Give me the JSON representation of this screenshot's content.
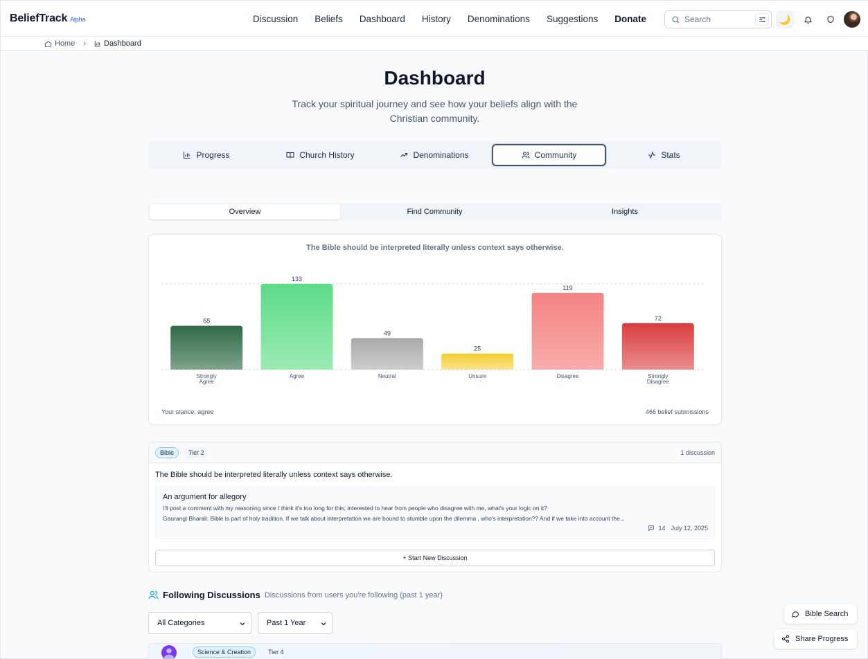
{
  "app": {
    "brand": "BeliefTrack",
    "badge": "Alpha"
  },
  "nav": {
    "items": [
      "Discussion",
      "Beliefs",
      "Dashboard",
      "History",
      "Denominations",
      "Suggestions",
      "Donate"
    ]
  },
  "search": {
    "placeholder": "Search"
  },
  "breadcrumb": {
    "home": "Home",
    "current": "Dashboard"
  },
  "page": {
    "title": "Dashboard",
    "subtitle": "Track your spiritual journey and see how your beliefs align with the Christian community."
  },
  "tabs": [
    {
      "label": "Progress",
      "icon": "bar-chart-icon"
    },
    {
      "label": "Church History",
      "icon": "book-icon"
    },
    {
      "label": "Denominations",
      "icon": "trending-up-icon"
    },
    {
      "label": "Community",
      "icon": "users-icon",
      "active": true
    },
    {
      "label": "Stats",
      "icon": "activity-icon"
    }
  ],
  "subtabs": [
    {
      "label": "Overview",
      "active": true
    },
    {
      "label": "Find Community"
    },
    {
      "label": "Insights"
    }
  ],
  "chart_data": {
    "type": "bar",
    "title": "The Bible should be interpreted literally unless context says otherwise.",
    "categories": [
      "Strongly Agree",
      "Agree",
      "Neutral",
      "Unsure",
      "Disagree",
      "Strongly Disagree"
    ],
    "values": [
      68,
      133,
      49,
      25,
      119,
      72
    ],
    "colors": [
      [
        "#2f6a47",
        "#7fa38c"
      ],
      [
        "#5cdb88",
        "#9ceab4"
      ],
      [
        "#a9a9a9",
        "#cdcdcd"
      ],
      [
        "#f4cc2e",
        "#fbe28c"
      ],
      [
        "#f48383",
        "#f9acac"
      ],
      [
        "#dc3d3f",
        "#e98d8e"
      ]
    ],
    "ylim": [
      0,
      133
    ],
    "grid": true,
    "xlabel": "",
    "ylabel": ""
  },
  "chart_footer": {
    "stance": "Your stance: agree",
    "submissions": "466 belief submissions"
  },
  "belief": {
    "category": "Bible",
    "tier": "Tier 2",
    "discussion_count": "1 discussion",
    "statement": "The Bible should be interpreted literally unless context says otherwise.",
    "discussion": {
      "title": "An argument for allegory",
      "body": "I'll post a comment with my reasoning since I think it's too long for this; interested to hear from people who disagree with me, what's your logic on it?",
      "reply": "Gaurangi Bharali: Bible is part of holy tradition. If we talk about interpretation we are bound to stumble upon the dilemma , who's interpretation?? And if we take into account the...",
      "comments": "14",
      "date": "July 12, 2025"
    },
    "start_label": "+ Start New Discussion"
  },
  "following": {
    "title": "Following Discussions",
    "subtitle": "Discussions from users you're following (past 1 year)",
    "category_select": "All Categories",
    "period_select": "Past 1 Year",
    "first_item": {
      "category": "Science & Creation",
      "tier": "Tier 4"
    }
  },
  "floating": {
    "bible_search": "Bible Search",
    "share": "Share Progress"
  },
  "colors": {
    "accent": "#2563eb",
    "text": "#0f172a",
    "muted": "#64748b"
  }
}
